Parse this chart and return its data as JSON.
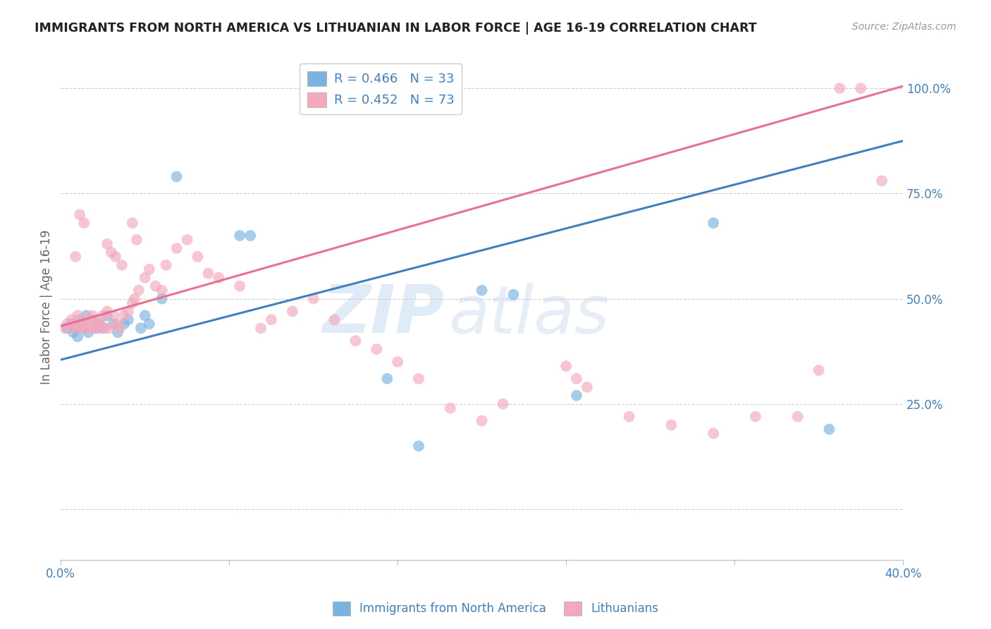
{
  "title": "IMMIGRANTS FROM NORTH AMERICA VS LITHUANIAN IN LABOR FORCE | AGE 16-19 CORRELATION CHART",
  "source": "Source: ZipAtlas.com",
  "ylabel": "In Labor Force | Age 16-19",
  "xlim": [
    0.0,
    0.4
  ],
  "ylim": [
    -0.12,
    1.08
  ],
  "xticks": [
    0.0,
    0.08,
    0.16,
    0.24,
    0.32,
    0.4
  ],
  "xticklabels": [
    "0.0%",
    "",
    "",
    "",
    "",
    "40.0%"
  ],
  "yticks_right": [
    0.0,
    0.25,
    0.5,
    0.75,
    1.0
  ],
  "yticklabels_right": [
    "",
    "25.0%",
    "50.0%",
    "75.0%",
    "100.0%"
  ],
  "blue_color": "#7AB3E0",
  "pink_color": "#F4A8BC",
  "blue_line_color": "#4080C0",
  "pink_line_color": "#E87090",
  "legend_blue_R": "R = 0.466",
  "legend_blue_N": "N = 33",
  "legend_pink_R": "R = 0.452",
  "legend_pink_N": "N = 73",
  "watermark_zip": "ZIP",
  "watermark_atlas": "atlas",
  "blue_scatter_x": [
    0.003,
    0.005,
    0.006,
    0.007,
    0.008,
    0.009,
    0.01,
    0.011,
    0.012,
    0.013,
    0.015,
    0.017,
    0.018,
    0.02,
    0.022,
    0.025,
    0.027,
    0.03,
    0.032,
    0.038,
    0.04,
    0.042,
    0.048,
    0.055,
    0.085,
    0.09,
    0.155,
    0.17,
    0.2,
    0.215,
    0.245,
    0.31,
    0.365
  ],
  "blue_scatter_y": [
    0.43,
    0.44,
    0.42,
    0.43,
    0.41,
    0.45,
    0.44,
    0.43,
    0.46,
    0.42,
    0.45,
    0.43,
    0.44,
    0.43,
    0.46,
    0.44,
    0.42,
    0.44,
    0.45,
    0.43,
    0.46,
    0.44,
    0.5,
    0.79,
    0.65,
    0.65,
    0.31,
    0.15,
    0.52,
    0.51,
    0.27,
    0.68,
    0.19
  ],
  "pink_scatter_x": [
    0.002,
    0.003,
    0.005,
    0.006,
    0.007,
    0.008,
    0.009,
    0.01,
    0.011,
    0.012,
    0.013,
    0.014,
    0.015,
    0.016,
    0.017,
    0.018,
    0.019,
    0.02,
    0.021,
    0.022,
    0.023,
    0.025,
    0.027,
    0.028,
    0.03,
    0.032,
    0.034,
    0.035,
    0.037,
    0.04,
    0.042,
    0.045,
    0.048,
    0.05,
    0.055,
    0.06,
    0.065,
    0.07,
    0.075,
    0.085,
    0.095,
    0.1,
    0.11,
    0.12,
    0.13,
    0.14,
    0.15,
    0.16,
    0.17,
    0.185,
    0.2,
    0.21,
    0.24,
    0.245,
    0.25,
    0.27,
    0.29,
    0.31,
    0.33,
    0.35,
    0.36,
    0.37,
    0.38,
    0.39,
    0.007,
    0.009,
    0.011,
    0.022,
    0.024,
    0.026,
    0.029,
    0.034,
    0.036
  ],
  "pink_scatter_y": [
    0.43,
    0.44,
    0.45,
    0.43,
    0.44,
    0.46,
    0.43,
    0.44,
    0.43,
    0.45,
    0.43,
    0.44,
    0.46,
    0.43,
    0.45,
    0.43,
    0.44,
    0.46,
    0.43,
    0.47,
    0.43,
    0.46,
    0.44,
    0.43,
    0.46,
    0.47,
    0.49,
    0.5,
    0.52,
    0.55,
    0.57,
    0.53,
    0.52,
    0.58,
    0.62,
    0.64,
    0.6,
    0.56,
    0.55,
    0.53,
    0.43,
    0.45,
    0.47,
    0.5,
    0.45,
    0.4,
    0.38,
    0.35,
    0.31,
    0.24,
    0.21,
    0.25,
    0.34,
    0.31,
    0.29,
    0.22,
    0.2,
    0.18,
    0.22,
    0.22,
    0.33,
    1.0,
    1.0,
    0.78,
    0.6,
    0.7,
    0.68,
    0.63,
    0.61,
    0.6,
    0.58,
    0.68,
    0.64
  ],
  "blue_line_x0": 0.0,
  "blue_line_x1": 0.4,
  "blue_line_y0": 0.355,
  "blue_line_y1": 0.875,
  "pink_line_x0": 0.0,
  "pink_line_x1": 0.4,
  "pink_line_y0": 0.435,
  "pink_line_y1": 1.005
}
